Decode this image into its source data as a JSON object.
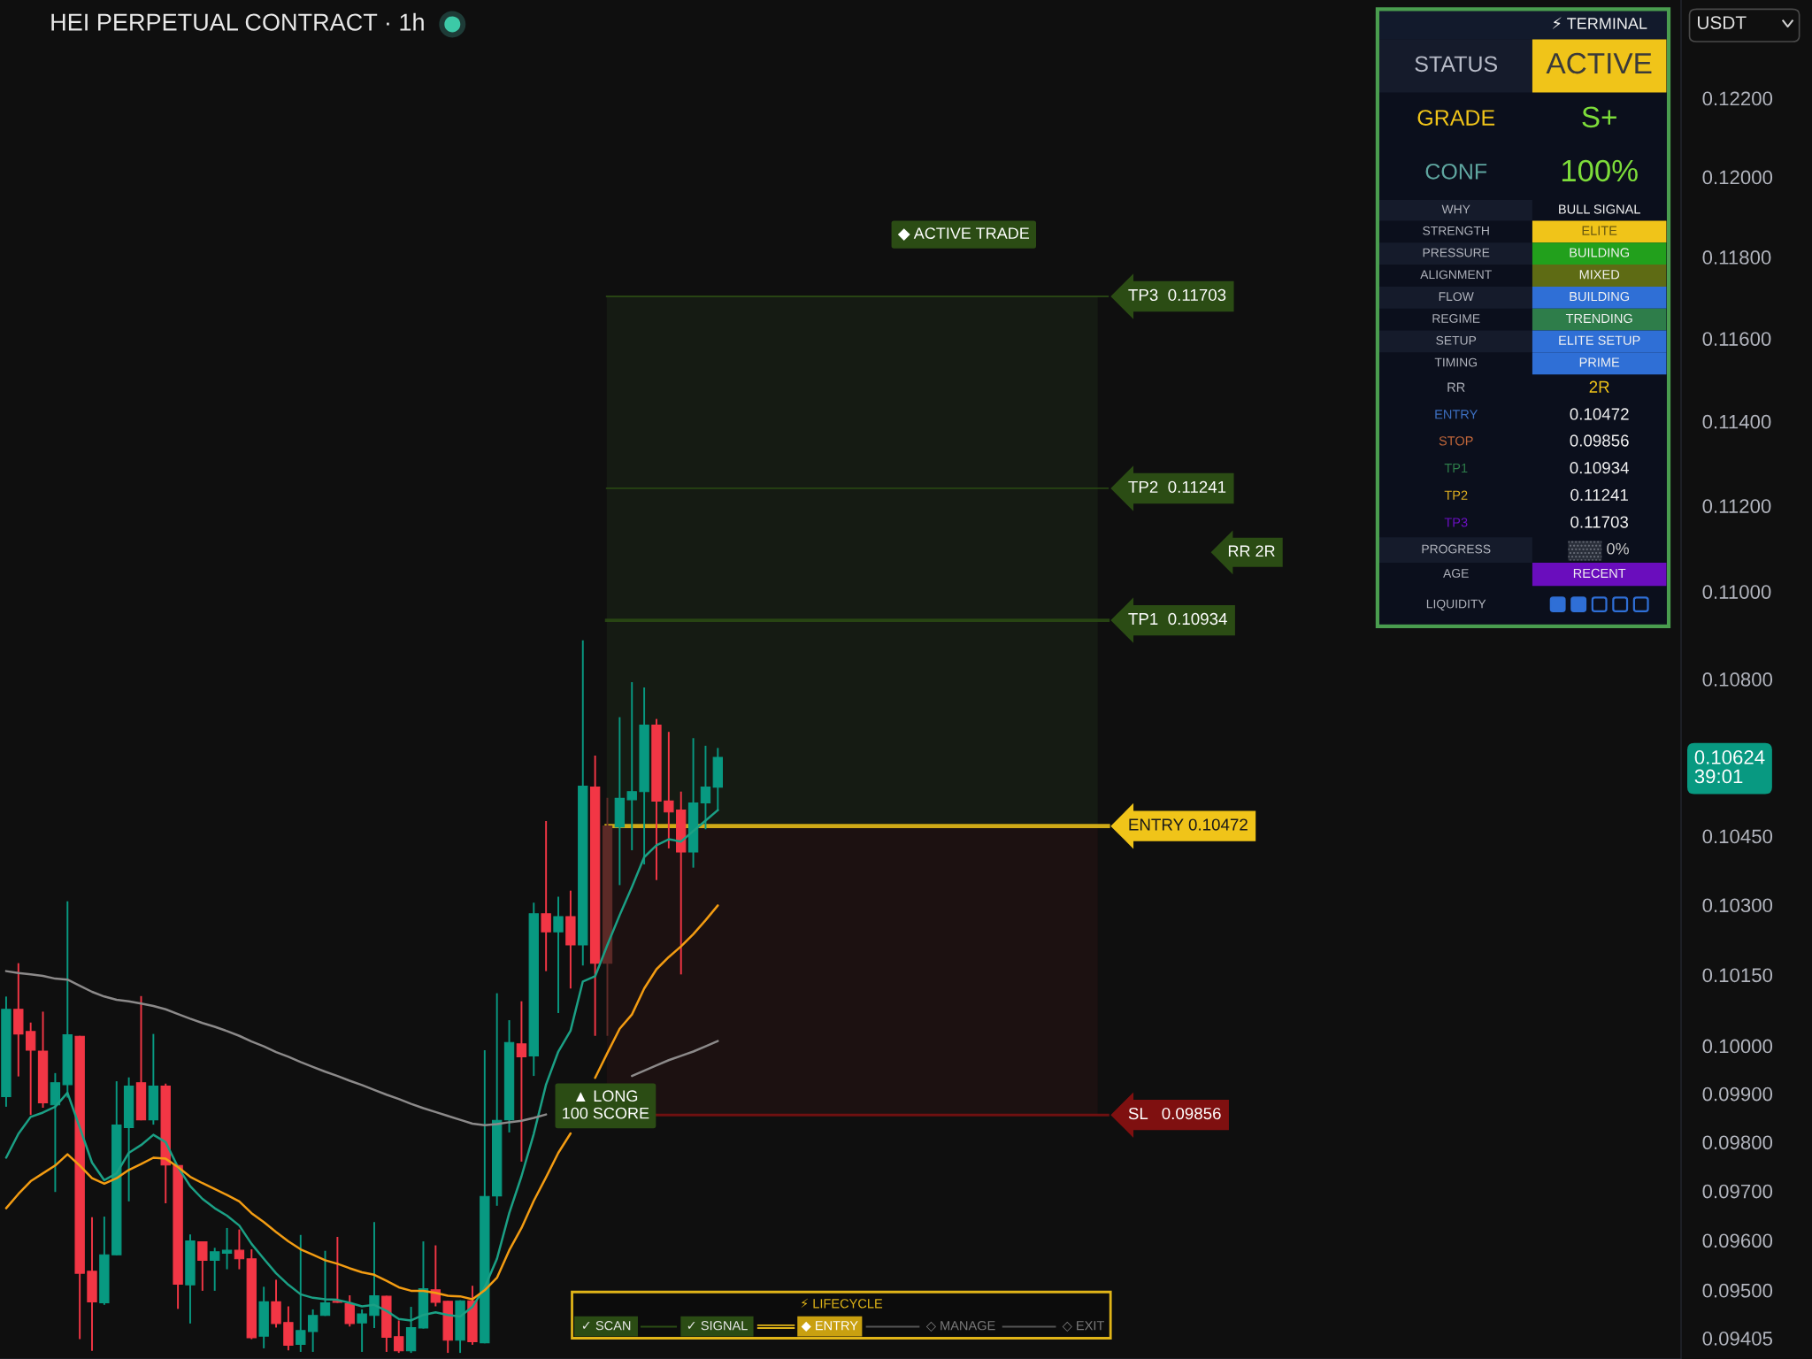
{
  "chart_data": [
    {
      "type": "candlestick",
      "title": "HEI PERPETUAL CONTRACT · 1h",
      "categories": [
        null,
        null,
        null,
        null,
        null,
        null,
        null,
        null,
        null,
        null,
        null,
        null,
        null,
        null,
        null,
        null,
        null,
        null,
        null,
        null,
        null,
        null,
        null,
        null,
        null,
        null,
        null,
        null,
        null,
        null,
        null,
        null,
        null,
        null,
        null,
        null,
        null,
        null,
        null,
        null,
        null,
        null,
        null,
        null,
        null,
        null,
        null,
        null,
        null,
        null,
        null,
        null,
        null,
        null,
        null,
        null,
        null,
        null,
        null,
        null,
        null,
        null,
        null,
        null,
        null,
        null,
        null,
        null,
        null,
        null,
        null,
        null,
        null,
        null,
        null,
        null,
        null,
        null,
        null,
        null,
        null,
        null,
        null,
        null,
        null,
        null,
        null,
        null,
        null,
        null,
        null,
        null,
        null,
        null,
        null,
        null,
        null,
        null,
        null,
        null,
        null,
        null,
        null,
        null,
        null,
        null,
        null,
        null,
        null,
        null,
        null,
        null,
        null,
        null,
        null,
        null,
        null,
        null,
        null,
        null,
        null,
        null,
        null,
        null,
        null,
        null,
        null,
        null,
        null,
        null,
        null,
        null,
        null,
        null,
        null,
        null,
        null
      ],
      "ohlc": [
        [
          0.09894,
          0.10104,
          0.09873,
          0.10077
        ],
        [
          0.10077,
          0.10175,
          0.09936,
          0.10025
        ],
        [
          0.1003,
          0.10049,
          0.09856,
          0.09991
        ],
        [
          0.09989,
          0.10072,
          0.09871,
          0.09881
        ],
        [
          0.09877,
          0.09943,
          0.09698,
          0.09923
        ],
        [
          0.09919,
          0.10308,
          0.09892,
          0.10023
        ],
        [
          0.1002,
          0.10021,
          0.09403,
          0.09534
        ],
        [
          0.09538,
          0.09647,
          0.0938,
          0.09477
        ],
        [
          0.09475,
          0.09648,
          0.09471,
          0.09571
        ],
        [
          0.09571,
          0.09926,
          0.0957,
          0.09835
        ],
        [
          0.0983,
          0.09934,
          0.09679,
          0.09916
        ],
        [
          0.09923,
          0.10105,
          0.09845,
          0.09846
        ],
        [
          0.09846,
          0.10025,
          0.09836,
          0.09916
        ],
        [
          0.09916,
          0.09921,
          0.09675,
          0.09753
        ],
        [
          0.09752,
          0.09753,
          0.09463,
          0.09512
        ],
        [
          0.09511,
          0.09612,
          0.09434,
          0.09599
        ],
        [
          0.09597,
          0.09598,
          0.09499,
          0.0956
        ],
        [
          0.0956,
          0.09585,
          0.09499,
          0.09577
        ],
        [
          0.09574,
          0.09625,
          0.09542,
          0.0958
        ],
        [
          0.0958,
          0.09622,
          0.09542,
          0.09563
        ],
        [
          0.09563,
          0.09582,
          0.09403,
          0.09406
        ],
        [
          0.09409,
          0.09507,
          0.09385,
          0.09477
        ],
        [
          0.09477,
          0.09521,
          0.09426,
          0.09434
        ],
        [
          0.09436,
          0.09468,
          0.09381,
          0.09391
        ],
        [
          0.09393,
          0.09611,
          0.09378,
          0.0942
        ],
        [
          0.09418,
          0.09462,
          0.09378,
          0.0945
        ],
        [
          0.0945,
          0.09579,
          0.09449,
          0.09475
        ],
        [
          0.09478,
          0.09607,
          0.09475,
          0.09476
        ],
        [
          0.09473,
          0.0949,
          0.09428,
          0.09434
        ],
        [
          0.09435,
          0.09462,
          0.09378,
          0.09453
        ],
        [
          0.0945,
          0.09637,
          0.09425,
          0.09489
        ],
        [
          0.09488,
          0.09489,
          0.09378,
          0.09407
        ],
        [
          0.09408,
          0.0944,
          0.09376,
          0.0938
        ],
        [
          0.0938,
          0.09467,
          0.09376,
          0.09426
        ],
        [
          0.09425,
          0.09598,
          0.09424,
          0.09503
        ],
        [
          0.09501,
          0.0959,
          0.09468,
          0.09476
        ],
        [
          0.09478,
          0.09479,
          0.09376,
          0.09401
        ],
        [
          0.09401,
          0.0948,
          0.09376,
          0.09479
        ],
        [
          0.09479,
          0.09509,
          0.09392,
          0.09398
        ],
        [
          0.09396,
          0.09991,
          0.09395,
          0.09689
        ],
        [
          0.0969,
          0.10111,
          0.0967,
          0.09845
        ],
        [
          0.09846,
          0.10054,
          0.0982,
          0.10007
        ],
        [
          0.10004,
          0.10094,
          0.0976,
          0.09977
        ],
        [
          0.09979,
          0.10305,
          0.09937,
          0.10281
        ],
        [
          0.10281,
          0.10483,
          0.10158,
          0.10242
        ],
        [
          0.10242,
          0.10318,
          0.10069,
          0.10275
        ],
        [
          0.10275,
          0.10331,
          0.10121,
          0.10214
        ],
        [
          0.10214,
          0.10888,
          0.1017,
          0.1056
        ],
        [
          0.10558,
          0.10628,
          0.10021,
          0.10175
        ],
        [
          0.10175,
          0.10534,
          0.10021,
          0.10472
        ],
        [
          0.1047,
          0.10714,
          0.10343,
          0.10533
        ],
        [
          0.1053,
          0.10793,
          0.10419,
          0.10548
        ],
        [
          0.10548,
          0.10781,
          0.10388,
          0.10696
        ],
        [
          0.10696,
          0.1071,
          0.10354,
          0.10527
        ],
        [
          0.10527,
          0.10681,
          0.10423,
          0.10503
        ],
        [
          0.10507,
          0.10548,
          0.10151,
          0.10415
        ],
        [
          0.10415,
          0.10667,
          0.10381,
          0.10523
        ],
        [
          0.10523,
          0.1065,
          0.10465,
          0.10558
        ],
        [
          0.10558,
          0.10645,
          0.10505,
          0.10624
        ],
        null,
        null,
        null,
        null,
        null,
        null,
        null,
        null,
        null,
        null,
        null,
        null,
        null,
        null,
        null,
        null,
        null,
        null,
        null,
        null,
        null,
        null,
        null,
        null,
        null,
        null,
        null,
        null,
        null,
        null,
        null,
        null,
        null,
        null,
        null,
        null,
        null,
        null,
        null,
        null,
        null,
        null,
        null,
        null,
        null,
        null,
        null,
        null,
        null,
        null,
        null,
        null,
        null,
        null,
        null,
        null,
        null,
        null,
        null,
        null,
        null,
        null,
        null,
        null,
        null,
        null,
        null,
        null,
        null,
        null,
        null,
        null,
        null,
        null,
        null,
        null,
        null,
        null
      ],
      "colors": [
        "#089981",
        "#f23645",
        "#f23645",
        "#f23645",
        "#089981",
        "#089981",
        "#f23645",
        "#f23645",
        "#089981",
        "#089981",
        "#089981",
        "#f23645",
        "#089981",
        "#f23645",
        "#f23645",
        "#089981",
        "#f23645",
        "#089981",
        "#089981",
        "#f23645",
        "#f23645",
        "#089981",
        "#f23645",
        "#f23645",
        "#089981",
        "#089981",
        "#089981",
        "#f23645",
        "#f23645",
        "#089981",
        "#089981",
        "#f23645",
        "#f23645",
        "#089981",
        "#089981",
        "#f23645",
        "#f23645",
        "#089981",
        "#f23645",
        "#089981",
        "#089981",
        "#089981",
        "#f23645",
        "#089981",
        "#f23645",
        "#089981",
        "#f23645",
        "#089981",
        "#f23645",
        "#5c2a27",
        "#089981",
        "#089981",
        "#089981",
        "#f23645",
        "#f23645",
        "#f23645",
        "#089981",
        "#089981",
        "#089981",
        null,
        null,
        null,
        null,
        null,
        null,
        null,
        null,
        null,
        null,
        null,
        null,
        null,
        null,
        null,
        null,
        null,
        null,
        null,
        null,
        null,
        null,
        null,
        null,
        null,
        null,
        null,
        null,
        null,
        null,
        null,
        null,
        null,
        null,
        null,
        null,
        null,
        null,
        null,
        null,
        null,
        null,
        null,
        null,
        null,
        null,
        null,
        null,
        null,
        null,
        null,
        null,
        null,
        null,
        null,
        null,
        null,
        null,
        null,
        null,
        null,
        null,
        null,
        null,
        null,
        null,
        null,
        null,
        null,
        null,
        null,
        null,
        null,
        null,
        null,
        null,
        null,
        null
      ],
      "series": [
        {
          "type": "line",
          "color": "#1ba085",
          "values": [
            0.09768,
            0.09817,
            0.09852,
            0.09861,
            0.09873,
            0.09902,
            0.0983,
            0.09758,
            0.09722,
            0.09736,
            0.09778,
            0.09794,
            0.09815,
            0.098,
            0.09749,
            0.0971,
            0.09684,
            0.09665,
            0.0965,
            0.0963,
            0.09593,
            0.09563,
            0.09534,
            0.09511,
            0.09492,
            0.09485,
            0.09482,
            0.09481,
            0.09475,
            0.09468,
            0.09471,
            0.09459,
            0.09443,
            0.0944,
            0.09451,
            0.09456,
            0.09451,
            0.09448,
            0.09467,
            0.09506,
            0.09563,
            0.09655,
            0.0973,
            0.09817,
            0.09919,
            0.09988,
            0.10032,
            0.10136,
            0.10147,
            0.10214,
            0.10278,
            0.10339,
            0.10404,
            0.1043,
            0.10443,
            0.10438,
            0.10461,
            0.10484,
            0.10507,
            null,
            null,
            null,
            null,
            null,
            null,
            null,
            null,
            null,
            null,
            null,
            null,
            null,
            null,
            null,
            null,
            null,
            null,
            null,
            null,
            null,
            null,
            null,
            null,
            null,
            null,
            null,
            null,
            null,
            null,
            null,
            null,
            null,
            null,
            null,
            null,
            null,
            null,
            null,
            null,
            null,
            null,
            null,
            null,
            null,
            null,
            null,
            null,
            null,
            null,
            null,
            null,
            null,
            null,
            null,
            null,
            null,
            null,
            null,
            null,
            null,
            null,
            null,
            null,
            null,
            null,
            null,
            null,
            null,
            null,
            null,
            null,
            null,
            null,
            null,
            null,
            null,
            null
          ]
        },
        {
          "type": "line",
          "color": "#f39c12",
          "values": [
            0.09665,
            0.09694,
            0.0972,
            0.09736,
            0.09752,
            0.09775,
            0.09752,
            0.09726,
            0.09715,
            0.09726,
            0.09743,
            0.09755,
            0.09768,
            0.09766,
            0.09749,
            0.09729,
            0.09716,
            0.09704,
            0.09692,
            0.09679,
            0.09655,
            0.09637,
            0.09617,
            0.09598,
            0.09582,
            0.09571,
            0.0956,
            0.09553,
            0.09544,
            0.09536,
            0.09531,
            0.09519,
            0.09506,
            0.09499,
            0.09499,
            0.09495,
            0.09489,
            0.09488,
            0.09482,
            0.095,
            0.09525,
            0.0958,
            0.09625,
            0.0968,
            0.09728,
            0.09778,
            0.09818,
            null,
            0.09933,
            0.09985,
            0.10036,
            0.10066,
            0.10121,
            0.10162,
            0.10188,
            0.10211,
            0.10237,
            0.10267,
            0.10299,
            null,
            null,
            null,
            null,
            null,
            null,
            null,
            null,
            null,
            null,
            null,
            null,
            null,
            null,
            null,
            null,
            null,
            null,
            null,
            null,
            null,
            null,
            null,
            null,
            null,
            null,
            null,
            null,
            null,
            null,
            null,
            null,
            null,
            null,
            null,
            null,
            null,
            null,
            null,
            null,
            null,
            null,
            null,
            null,
            null,
            null,
            null,
            null,
            null,
            null,
            null,
            null,
            null,
            null,
            null,
            null,
            null,
            null,
            null,
            null,
            null,
            null,
            null,
            null,
            null,
            null,
            null,
            null,
            null,
            null,
            null,
            null,
            null,
            null,
            null,
            null,
            null,
            null
          ]
        },
        {
          "type": "line",
          "color": "#8c8a8a",
          "values": [
            0.10158,
            0.10154,
            0.10151,
            0.10148,
            0.10142,
            0.1014,
            0.10127,
            0.10114,
            0.10104,
            0.10097,
            0.10094,
            0.10089,
            0.10084,
            0.10077,
            0.10067,
            0.10057,
            0.10048,
            0.1004,
            0.10031,
            0.10021,
            0.10009,
            0.09999,
            0.09987,
            0.09977,
            0.09966,
            0.09956,
            0.09946,
            0.09937,
            0.09927,
            0.09918,
            0.09908,
            0.09898,
            0.09889,
            0.09879,
            0.0987,
            0.09862,
            0.09854,
            0.09846,
            0.09838,
            0.09835,
            0.09837,
            0.09841,
            0.09844,
            0.0985,
            0.09857,
            null,
            null,
            null,
            null,
            null,
            null,
            0.09937,
            0.09948,
            0.09959,
            0.0997,
            0.09979,
            0.09988,
            0.09999,
            0.1001,
            null,
            null,
            null,
            null,
            null,
            null,
            null,
            null,
            null,
            null,
            null,
            null,
            null,
            null,
            null,
            null,
            null,
            null,
            null,
            null,
            null,
            null,
            null,
            null,
            null,
            null,
            null,
            null,
            null,
            null,
            null,
            null,
            null,
            null,
            null,
            null,
            null,
            null,
            null,
            null,
            null,
            null,
            null,
            null,
            null,
            null,
            null,
            null,
            null,
            null,
            null,
            null,
            null,
            null,
            null,
            null,
            null,
            null,
            null,
            null,
            null,
            null,
            null,
            null,
            null,
            null,
            null,
            null,
            null,
            null,
            null,
            null,
            null,
            null,
            null,
            null,
            null,
            null
          ]
        }
      ],
      "log": true,
      "ylim": [
        0.09364,
        0.12454
      ],
      "yticks": [
        {
          "value": 0.122,
          "label": "0.12200"
        },
        {
          "value": 0.12,
          "label": "0.12000"
        },
        {
          "value": 0.118,
          "label": "0.11800"
        },
        {
          "value": 0.116,
          "label": "0.11600"
        },
        {
          "value": 0.114,
          "label": "0.11400"
        },
        {
          "value": 0.112,
          "label": "0.11200"
        },
        {
          "value": 0.11,
          "label": "0.11000"
        },
        {
          "value": 0.108,
          "label": "0.10800"
        },
        {
          "value": 0.1045,
          "label": "0.10450"
        },
        {
          "value": 0.103,
          "label": "0.10300"
        },
        {
          "value": 0.1015,
          "label": "0.10150"
        },
        {
          "value": 0.1,
          "label": "0.10000"
        },
        {
          "value": 0.099,
          "label": "0.09900"
        },
        {
          "value": 0.098,
          "label": "0.09800"
        },
        {
          "value": 0.097,
          "label": "0.09700"
        },
        {
          "value": 0.096,
          "label": "0.09600"
        },
        {
          "value": 0.095,
          "label": "0.09500"
        },
        {
          "value": 0.09405,
          "label": "0.09405"
        }
      ],
      "tick_labels": "y",
      "ref_lines": [
        {
          "axis": "y",
          "value": 0.11703,
          "label": "TP3  0.11703",
          "color": "#2b4c14"
        },
        {
          "axis": "y",
          "value": 0.11241,
          "label": "TP2  0.11241",
          "color": "#2b4c14"
        },
        {
          "axis": "y",
          "value": 0.10934,
          "label": "TP1  0.10934",
          "color": "#2b4c14"
        },
        {
          "axis": "y",
          "value": 0.10472,
          "label": "ENTRY 0.10472",
          "color": "#f0c419"
        },
        {
          "axis": "y",
          "value": 0.09856,
          "label": "SL   0.09856",
          "color": "#7f1010"
        }
      ],
      "bands": [
        {
          "axis": "y",
          "from": 0.10472,
          "to": 0.11703,
          "color": "#151b13"
        },
        {
          "axis": "y",
          "from": 0.09856,
          "to": 0.10472,
          "color": "#1c1111"
        }
      ],
      "annotations": [
        "◆ ACTIVE TRADE",
        "RR 2R",
        "▲ LONG\n100 SCORE",
        "0.10624\n39:01",
        "USDT"
      ]
    },
    {
      "type": "other",
      "title": "⚡ TERMINAL",
      "annotations": [
        "STATUS",
        "ACTIVE",
        "GRADE",
        "S+",
        "CONF",
        "100%",
        "WHY",
        "BULL SIGNAL",
        "STRENGTH",
        "ELITE",
        "PRESSURE",
        "BUILDING",
        "ALIGNMENT",
        "MIXED",
        "FLOW",
        "BUILDING",
        "REGIME",
        "TRENDING",
        "SETUP",
        "ELITE SETUP",
        "TIMING",
        "PRIME",
        "RR",
        "2R",
        "ENTRY",
        "0.10472",
        "STOP",
        "0.09856",
        "TP1",
        "0.10934",
        "TP2",
        "0.11241",
        "TP3",
        "0.11703",
        "PROGRESS",
        "0%",
        "AGE",
        "RECENT",
        "LIQUIDITY"
      ]
    },
    {
      "type": "other",
      "title": "⚡ LIFECYCLE",
      "annotations": [
        "✓ SCAN",
        "✓ SIGNAL",
        "◆ ENTRY",
        "◇ MANAGE",
        "◇ EXIT"
      ]
    }
  ]
}
